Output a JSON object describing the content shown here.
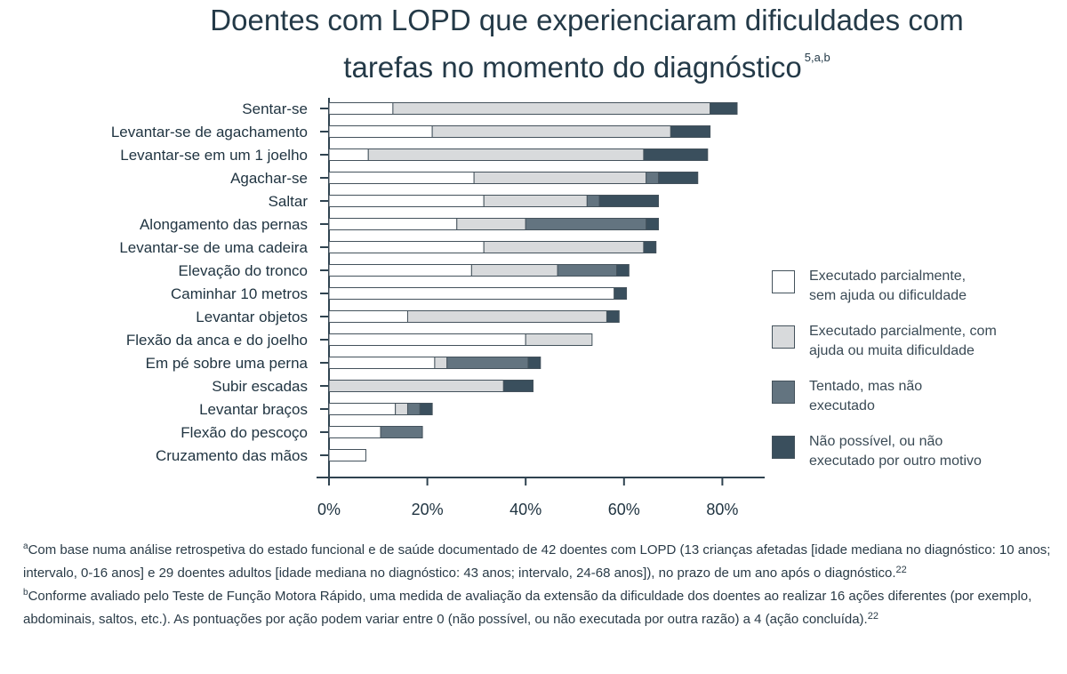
{
  "title": {
    "text": "Doentes com LOPD que experienciaram dificuldades com tarefas no momento do diagnóstico",
    "superscript": "5,a,b"
  },
  "colors": {
    "partial_no_help": "#ffffff",
    "partial_with_help": "#d8dadc",
    "attempted_not_done": "#637480",
    "not_possible": "#3a4f5d",
    "bar_outline": "#44525c",
    "axis": "#2f4350",
    "text": "#1f3340"
  },
  "chart_data": {
    "type": "bar",
    "orientation": "horizontal",
    "stacked": true,
    "categories": [
      "Sentar-se",
      "Levantar-se de agachamento",
      "Levantar-se em um 1 joelho",
      "Agachar-se",
      "Saltar",
      "Alongamento das pernas",
      "Levantar-se de uma cadeira",
      "Elevação do tronco",
      "Caminhar 10 metros",
      "Levantar objetos",
      "Flexão da anca e do joelho",
      "Em pé sobre uma perna",
      "Subir escadas",
      "Levantar braços",
      "Flexão do pescoço",
      "Cruzamento das mãos"
    ],
    "series": [
      {
        "name": "Executado parcialmente,\nsem ajuda ou dificuldade",
        "color_key": "partial_no_help",
        "values": [
          13,
          21,
          8,
          29.5,
          31.5,
          26,
          31.5,
          29,
          58,
          16,
          40,
          21.5,
          0,
          13.5,
          10.5,
          7.5
        ]
      },
      {
        "name": "Executado parcialmente, com\najuda ou muita dificuldade",
        "color_key": "partial_with_help",
        "values": [
          64.5,
          48.5,
          56,
          35,
          21,
          14,
          32.5,
          17.5,
          0,
          40.5,
          13.5,
          2.5,
          35.5,
          2.5,
          0,
          0
        ]
      },
      {
        "name": "Tentado, mas não\nexecutado",
        "color_key": "attempted_not_done",
        "values": [
          0,
          0,
          0,
          2.5,
          2.5,
          24.5,
          0,
          12,
          0,
          0,
          0,
          16.5,
          0,
          2.5,
          8.5,
          0
        ]
      },
      {
        "name": "Não possível, ou não\nexecutado por outro motivo",
        "color_key": "not_possible",
        "values": [
          5.5,
          8,
          13,
          8,
          12,
          2.5,
          2.5,
          2.5,
          2.5,
          2.5,
          0,
          2.5,
          6,
          2.5,
          0,
          0
        ]
      }
    ],
    "xlim": [
      0,
      88
    ],
    "xticks": [
      0,
      20,
      40,
      60,
      80
    ],
    "xtick_labels": [
      "0%",
      "20%",
      "40%",
      "60%",
      "80%"
    ],
    "legend_position": "right",
    "grid": false
  },
  "footnotes": {
    "a_marker": "a",
    "a_text": "Com base numa análise retrospetiva do estado funcional e de saúde documentado de 42 doentes com LOPD (13 crianças afetadas [idade mediana no diagnóstico: 10 anos; intervalo, 0-16 anos] e 29 doentes adultos [idade mediana no diagnóstico: 43 anos; intervalo, 24-68 anos]), no prazo de um ano após o diagnóstico.",
    "a_ref": "22",
    "b_marker": "b",
    "b_text": "Conforme avaliado pelo Teste de Função Motora Rápido, uma medida de avaliação da extensão da dificuldade dos doentes ao realizar 16 ações diferentes (por exemplo, abdominais, saltos, etc.). As pontuações por ação podem variar entre 0 (não possível, ou não executada por outra razão) a 4 (ação concluída).",
    "b_ref": "22"
  }
}
